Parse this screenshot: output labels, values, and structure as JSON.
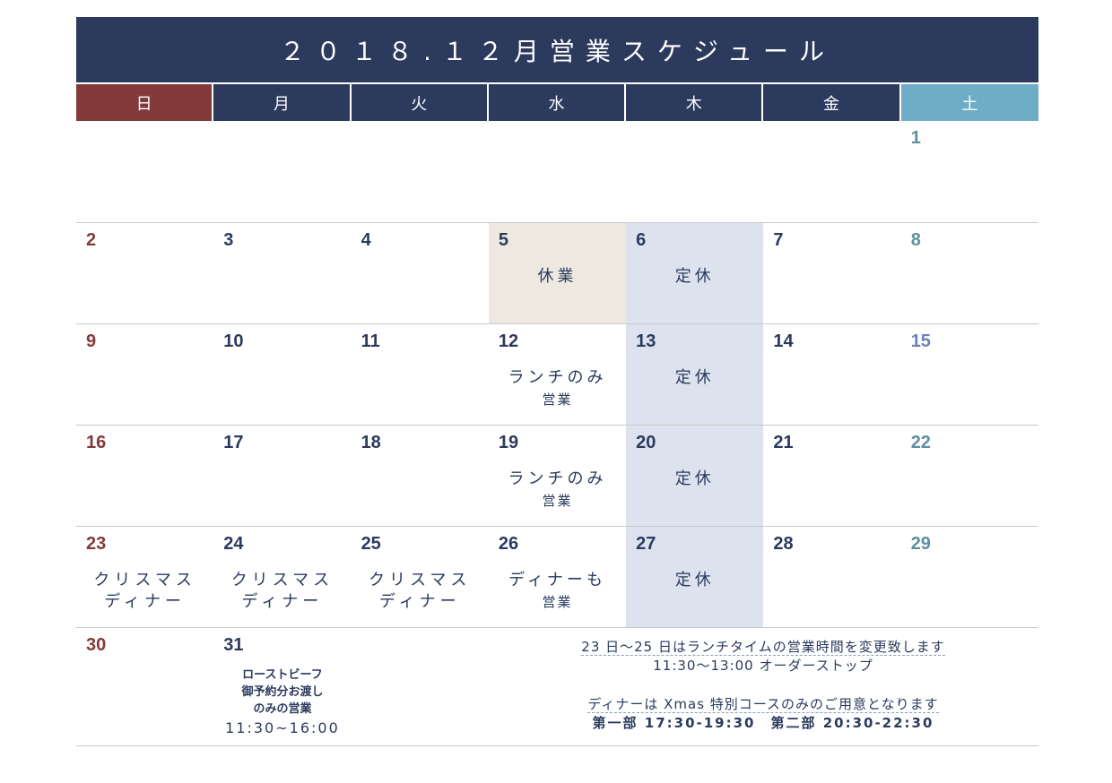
{
  "title": "２０１８.１２月営業スケジュール",
  "weekdays": [
    "日",
    "月",
    "火",
    "水",
    "木",
    "金",
    "土"
  ],
  "weeks": [
    [
      {
        "day": "",
        "type": "sun"
      },
      {
        "day": ""
      },
      {
        "day": ""
      },
      {
        "day": ""
      },
      {
        "day": ""
      },
      {
        "day": ""
      },
      {
        "day": "1",
        "type": "sat"
      }
    ],
    [
      {
        "day": "2",
        "type": "sun"
      },
      {
        "day": "3"
      },
      {
        "day": "4"
      },
      {
        "day": "5",
        "bg": "beige",
        "note": "休業"
      },
      {
        "day": "6",
        "bg": "blue",
        "note": "定休"
      },
      {
        "day": "7"
      },
      {
        "day": "8",
        "type": "sat"
      }
    ],
    [
      {
        "day": "9",
        "type": "sun"
      },
      {
        "day": "10"
      },
      {
        "day": "11"
      },
      {
        "day": "12",
        "note": "ランチのみ",
        "sub": "営業"
      },
      {
        "day": "13",
        "bg": "blue",
        "note": "定休"
      },
      {
        "day": "14"
      },
      {
        "day": "15",
        "type": "sat",
        "numStyle": "light-blue"
      }
    ],
    [
      {
        "day": "16",
        "type": "sun"
      },
      {
        "day": "17"
      },
      {
        "day": "18"
      },
      {
        "day": "19",
        "note": "ランチのみ",
        "sub": "営業"
      },
      {
        "day": "20",
        "bg": "blue",
        "note": "定休"
      },
      {
        "day": "21"
      },
      {
        "day": "22",
        "type": "sat"
      }
    ],
    [
      {
        "day": "23",
        "type": "sun",
        "note": "クリスマス",
        "note2": "ディナー"
      },
      {
        "day": "24",
        "note": "クリスマス",
        "note2": "ディナー"
      },
      {
        "day": "25",
        "note": "クリスマス",
        "note2": "ディナー"
      },
      {
        "day": "26",
        "note": "ディナーも",
        "sub": "営業"
      },
      {
        "day": "27",
        "bg": "blue",
        "note": "定休"
      },
      {
        "day": "28"
      },
      {
        "day": "29",
        "type": "sat"
      }
    ]
  ],
  "last_week": {
    "d30": "30",
    "d31": "31",
    "d31_lines": [
      "ローストビーフ",
      "御予約分お渡し",
      "のみの営業"
    ],
    "d31_time": "11:30~16:00"
  },
  "info": {
    "line1": "23 日〜25 日はランチタイムの営業時間を変更致します",
    "line2": "11:30〜13:00 オーダーストップ",
    "line3": "ディナーは Xmas 特別コースのみのご用意となります",
    "line4": "第一部 17:30-19:30　第二部 20:30-22:30"
  }
}
